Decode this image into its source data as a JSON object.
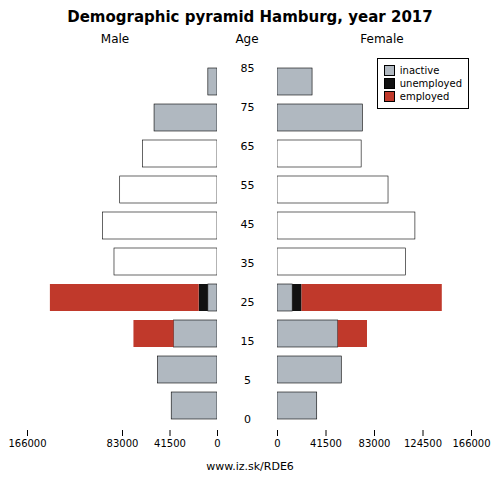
{
  "title": "Demographic pyramid Hamburg, year 2017",
  "subtitle": "www.iz.sk/RDE6",
  "ylabel": "Age",
  "chart_data": [
    {
      "type": "bar",
      "title": "Male",
      "orientation": "horizontal",
      "stacked": true,
      "categories": [
        "0",
        "5",
        "15",
        "25",
        "35",
        "45",
        "55",
        "65",
        "75",
        "85"
      ],
      "series": [
        {
          "name": "inactive",
          "color": "#b0b8c0",
          "colors": [
            "#b0b8c0",
            "#b0b8c0",
            "#b0b8c0",
            "#b0b8c0",
            "white",
            "white",
            "white",
            "white",
            "#b0b8c0",
            "#b0b8c0"
          ],
          "values": [
            40000,
            52000,
            38000,
            8000,
            90000,
            100000,
            85000,
            65000,
            55000,
            8000
          ]
        },
        {
          "name": "unemployed",
          "color": "#111111",
          "values": [
            0,
            0,
            0,
            8000,
            0,
            0,
            0,
            0,
            0,
            0
          ]
        },
        {
          "name": "employed",
          "color": "#c0392b",
          "values": [
            0,
            0,
            35000,
            130000,
            0,
            0,
            0,
            0,
            0,
            0
          ]
        }
      ],
      "xlim": [
        166000,
        0
      ],
      "xticks": [
        166000,
        83000,
        41500,
        0
      ]
    },
    {
      "type": "bar",
      "title": "Female",
      "orientation": "horizontal",
      "stacked": true,
      "legend": "upper right",
      "categories": [
        "0",
        "5",
        "15",
        "25",
        "35",
        "45",
        "55",
        "65",
        "75",
        "85"
      ],
      "series": [
        {
          "name": "inactive",
          "color": "#b0b8c0",
          "colors": [
            "#b0b8c0",
            "#b0b8c0",
            "#b0b8c0",
            "#b0b8c0",
            "white",
            "white",
            "white",
            "white",
            "#b0b8c0",
            "#b0b8c0"
          ],
          "values": [
            34000,
            55000,
            52000,
            13000,
            110000,
            118000,
            95000,
            72000,
            73000,
            30000
          ]
        },
        {
          "name": "unemployed",
          "color": "#111111",
          "values": [
            0,
            0,
            0,
            8000,
            0,
            0,
            0,
            0,
            0,
            0
          ]
        },
        {
          "name": "employed",
          "color": "#c0392b",
          "values": [
            0,
            0,
            25000,
            120000,
            0,
            0,
            0,
            0,
            0,
            0
          ]
        }
      ],
      "xlim": [
        0,
        166000
      ],
      "xticks": [
        0,
        41500,
        83000,
        124500,
        166000
      ]
    }
  ]
}
